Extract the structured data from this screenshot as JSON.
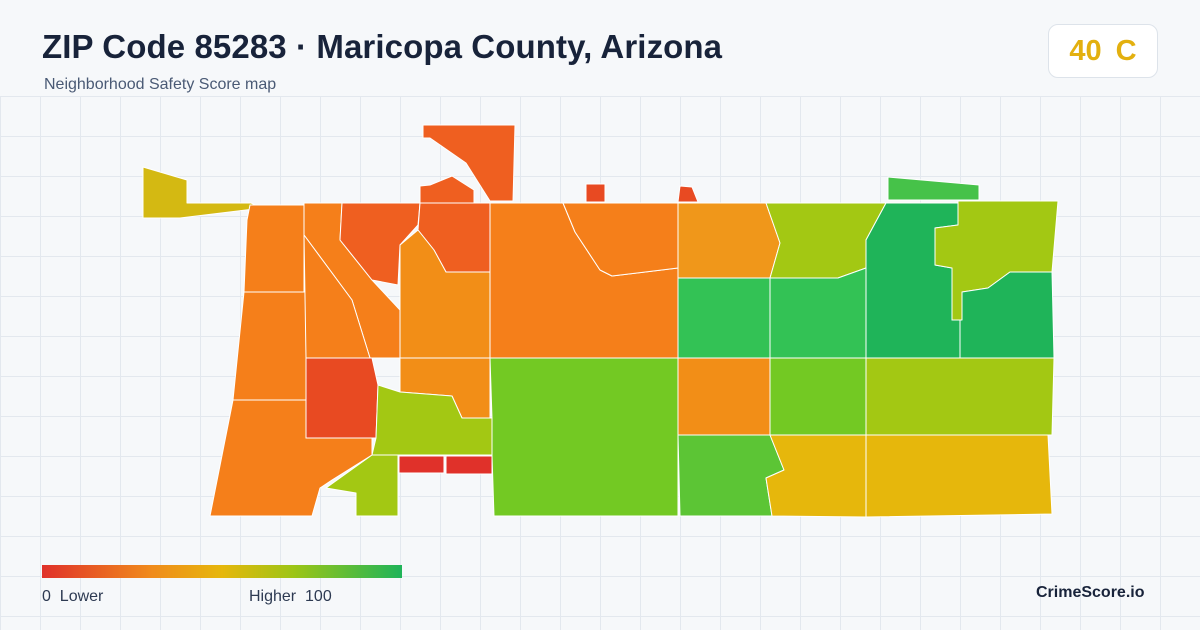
{
  "header": {
    "title": "ZIP Code 85283 · Maricopa County, Arizona",
    "subtitle": "Neighborhood Safety Score map"
  },
  "score": {
    "value": "40",
    "grade": "C",
    "color": "#e3b00f"
  },
  "legend": {
    "min_label": "0",
    "low_label": "Lower",
    "high_label": "Higher",
    "max_label": "100",
    "colors": [
      "#e0312a",
      "#f08a1c",
      "#e6b70c",
      "#9cc516",
      "#1fb459"
    ]
  },
  "brand": "CrimeScore.io",
  "map": {
    "region_colors": {
      "red": "#e0312a",
      "red_orange": "#e84a22",
      "orange_red": "#ef5f20",
      "orange": "#f57f1a",
      "orange_light": "#f28e17",
      "amber": "#f0971a",
      "gold": "#e6b70c",
      "yellow_green": "#a3c813",
      "lime": "#73c923",
      "green_light": "#5cc535",
      "green": "#33c255",
      "green_dark": "#1fb459",
      "olive_yellow": "#d4b912"
    }
  }
}
